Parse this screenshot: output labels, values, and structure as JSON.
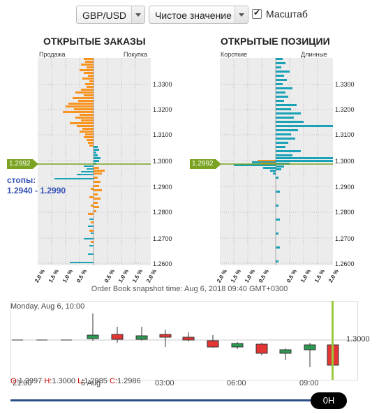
{
  "controls": {
    "pair": "GBP/USD",
    "mode": "Чистое значение",
    "scale_label": "Масштаб",
    "scale_checked": true
  },
  "orders": {
    "title": "ОТКРЫТЫЕ ЗАКАЗЫ",
    "left_label": "Продажа",
    "right_label": "Покупка",
    "price_tag": "1.2992",
    "stops_label": "стопы:",
    "stops_range": "1.2940 - 1.2990"
  },
  "positions": {
    "title": "ОТКРЫТЫЕ ПОЗИЦИИ",
    "left_label": "Короткие",
    "right_label": "Длинные",
    "price_tag": "1.2992"
  },
  "y_ticks": [
    "1.3300",
    "1.3200",
    "1.3100",
    "1.3000",
    "1.2900",
    "1.2800",
    "1.2700",
    "1.2600"
  ],
  "x_ticks": [
    "2.0 %",
    "1.5 %",
    "1.0 %",
    "0.5 %",
    "0.5 %",
    "1.0 %",
    "1.5 %",
    "2.0 %"
  ],
  "snapshot_text": "Order Book snapshot time: Aug 6, 2018 09:40 GMT+0300",
  "candles": {
    "date_label": "Monday, Aug 6, 10:00",
    "price_label": "1.3000",
    "ohlc_o_label": "O:",
    "ohlc_o": "1.2997",
    "ohlc_h_label": "H:",
    "ohlc_h": "1.3000",
    "ohlc_l_label": "L:",
    "ohlc_l": "1.2985",
    "ohlc_c_label": "C:",
    "ohlc_c": "1.2986",
    "hours": [
      "21:00",
      "6 Aug",
      "03:00",
      "06:00",
      "09:00"
    ],
    "slider_label": "0H"
  },
  "colors": {
    "sell": "#f7931e",
    "buy": "#1ba2b7",
    "price_line": "#7aa321",
    "candle_up": "#2b9a52",
    "candle_down": "#e43535"
  }
}
